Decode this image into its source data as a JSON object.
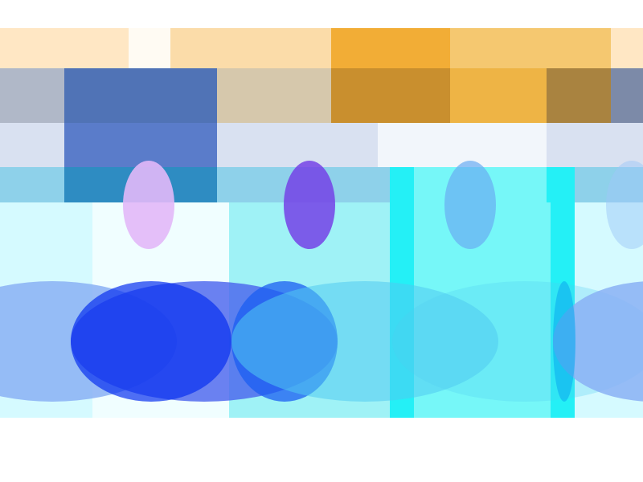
{
  "palette": {
    "background": "#ffffff",
    "peach": "#ffe7c4",
    "cream": "#fffbf3",
    "tan": "#fbdca9",
    "orange": "#f2ad36",
    "orange_light": "#f5c870",
    "steel_gray": "#b0b8c8",
    "navy_blue": "#5073b6",
    "slate": "#7c8aa8",
    "khaki": "#d6c8ac",
    "dark_gold": "#c98f2e",
    "amber": "#eeb445",
    "olive_brown": "#a98340",
    "pale_blue": "#d9e1f1",
    "mid_blue": "#5a7cca",
    "ice": "#f2f6fb",
    "sky": "#8ed1ea",
    "teal_blue": "#2e8cc2",
    "light_cyan": "#d5faff",
    "mint_cyan": "#f0feff",
    "aqua": "#9ff2f6",
    "cyan": "#24f0f6",
    "bright_cyan": "#76f7f8",
    "lavender": "#e2b8f8",
    "violet": "#7442e6",
    "cornflower": "#6aacf2",
    "royal_blue": "#0830f0",
    "blue": "#1b5ef2",
    "indigo": "#4862ee",
    "soft_blue": "#8ab0f4",
    "periwinkle": "#9ec7f7",
    "sky_cyan": "#50cbf1",
    "deep_sky": "#0aa8ee"
  }
}
